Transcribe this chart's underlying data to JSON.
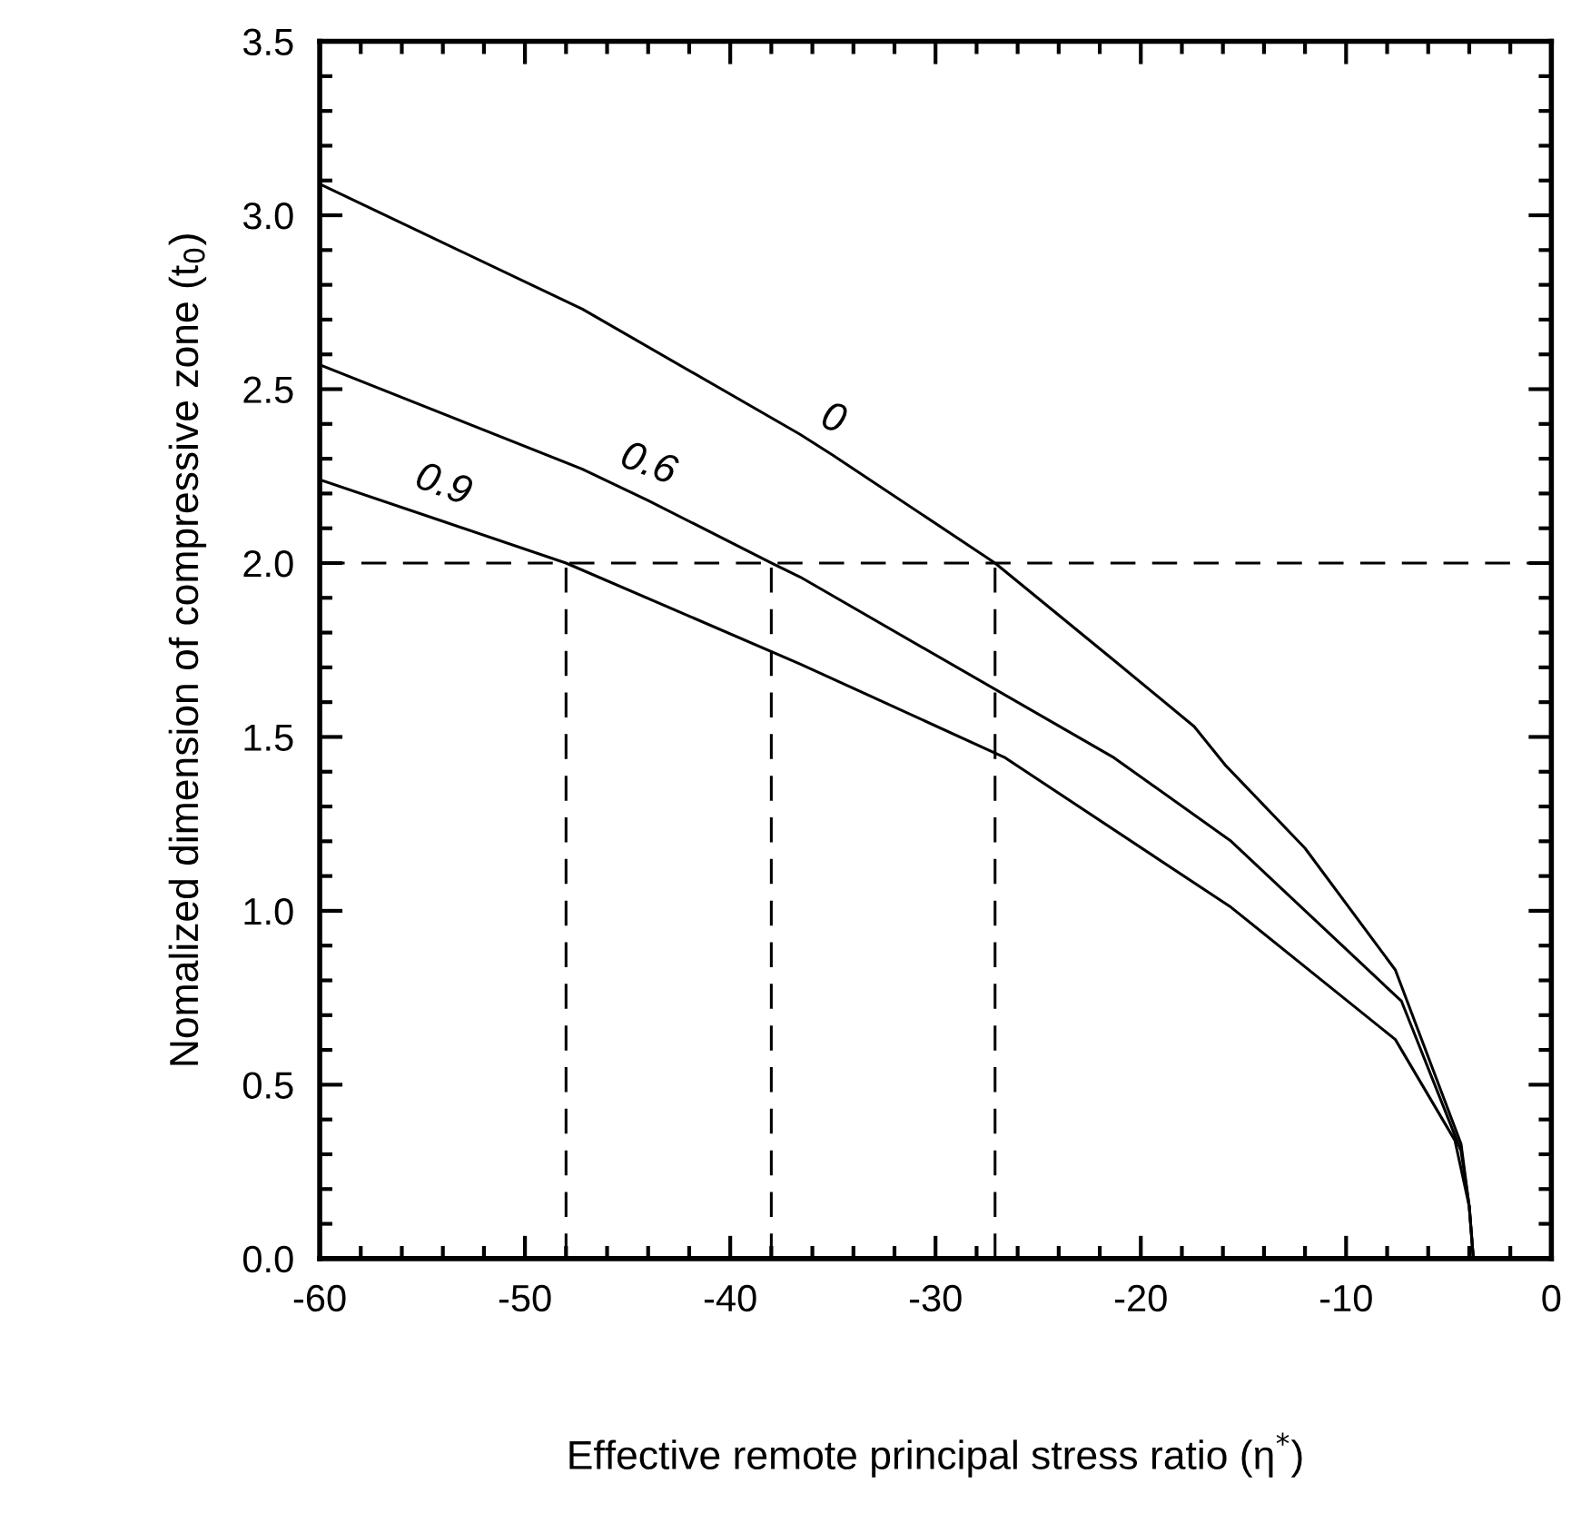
{
  "chart_data": {
    "type": "line",
    "xlabel": "Effective remote principal stress ratio (η$^{*}$)",
    "ylabel": "Nomalized dimension of compressive zone (t$_{0}$)",
    "xlim": [
      -60,
      0
    ],
    "xticks": [
      -60,
      -50,
      -40,
      -30,
      -20,
      -10,
      0
    ],
    "ylim": [
      0,
      3.5
    ],
    "yticks": [
      {
        "value": 0.0,
        "label": "0.0"
      },
      {
        "value": 0.5,
        "label": "0.5"
      },
      {
        "value": 1.0,
        "label": "1.0"
      },
      {
        "value": 1.5,
        "label": "1.5"
      },
      {
        "value": 2.0,
        "label": "2.0"
      },
      {
        "value": 2.5,
        "label": "2.5"
      },
      {
        "value": 3.0,
        "label": "3.0"
      },
      {
        "value": 3.5,
        "label": "3.5"
      }
    ],
    "grid": false,
    "legend": false,
    "marker": "none",
    "series": [
      {
        "color": "#000000",
        "line_style": "solid",
        "x": [
          -60,
          -47.2,
          -36.6,
          -35,
          -27.1,
          -21.3,
          -17.4,
          -15.9,
          -12,
          -7.6,
          -4.4,
          -4.0,
          -3.8
        ],
        "values": [
          3.09,
          2.73,
          2.37,
          2.31,
          2.0,
          1.72,
          1.53,
          1.42,
          1.18,
          0.83,
          0.33,
          0.15,
          0
        ]
      },
      {
        "color": "#000000",
        "line_style": "solid",
        "x": [
          -60,
          -47.2,
          -44,
          -38,
          -36.6,
          -21.3,
          -15.6,
          -7.3,
          -4.4,
          -4.0,
          -3.8
        ],
        "values": [
          2.57,
          2.27,
          2.18,
          2.0,
          1.96,
          1.44,
          1.2,
          0.74,
          0.31,
          0.15,
          0
        ]
      },
      {
        "color": "#000000",
        "line_style": "solid",
        "x": [
          -60,
          -54,
          -48,
          -36.6,
          -26.6,
          -15.6,
          -7.6,
          -4.7,
          -4.0,
          -3.8
        ],
        "values": [
          2.24,
          2.12,
          2.0,
          1.71,
          1.44,
          1.01,
          0.63,
          0.34,
          0.15,
          0
        ]
      },
      {
        "color": "#000000",
        "line_style": "dashed",
        "x": [
          -48,
          -48
        ],
        "values": [
          0,
          2.0
        ]
      },
      {
        "color": "#000000",
        "line_style": "dashed",
        "x": [
          -38,
          -38
        ],
        "values": [
          0,
          2.0
        ]
      },
      {
        "color": "#000000",
        "line_style": "dashed",
        "x": [
          -27.1,
          -27.1
        ],
        "values": [
          0,
          2.0
        ]
      }
    ],
    "ref_lines": [
      {
        "axis": "y",
        "value": 2.0,
        "color": "#000000",
        "line_style": "dashed"
      }
    ],
    "annotations": [
      {
        "text": "0",
        "x": -35,
        "y": 2.31
      },
      {
        "text": "0.6",
        "x": -44,
        "y": 2.18
      },
      {
        "text": "0.9",
        "x": -54,
        "y": 2.12
      }
    ]
  }
}
